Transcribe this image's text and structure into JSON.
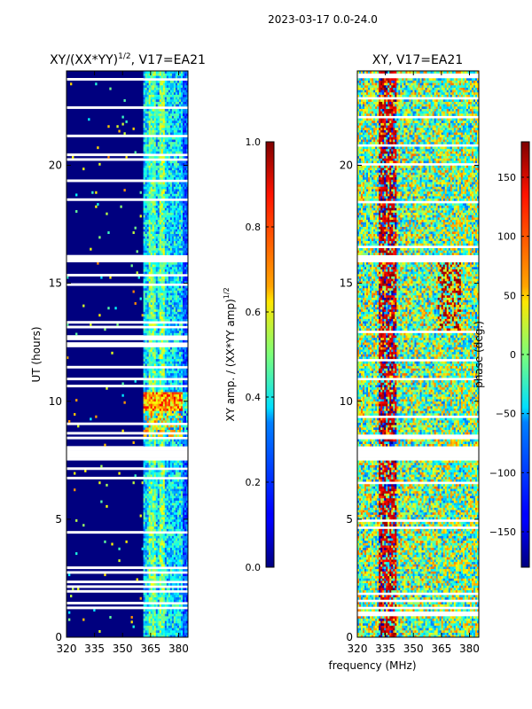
{
  "suptitle": "2023-03-17 0.0-24.0",
  "chart_data": [
    {
      "type": "heatmap",
      "title": "XY/(XX*YY)^1/2, V17=EA21",
      "title_main": "XY/(XX*YY)",
      "title_exp": "1/2",
      "title_tail": ", V17=EA21",
      "xlabel": "",
      "ylabel": "UT (hours)",
      "xlim": [
        320,
        385
      ],
      "ylim": [
        0,
        24
      ],
      "xticks": [
        320,
        335,
        350,
        365,
        380
      ],
      "xtick_labels": [
        "320",
        "335",
        "350",
        "365",
        "380"
      ],
      "yticks": [
        0,
        5,
        10,
        15,
        20
      ],
      "ytick_labels": [
        "0",
        "5",
        "10",
        "15",
        "20"
      ],
      "colormap": "jet",
      "colorbar": {
        "label": "XY amp. / (XX*YY amp)^1/2",
        "label_main": "XY amp. / (XX*YY amp)",
        "label_exp": "1/2",
        "vmin": 0.0,
        "vmax": 1.0,
        "ticks": [
          0.0,
          0.2,
          0.4,
          0.6,
          0.8,
          1.0
        ],
        "tick_labels": [
          "0.0",
          "0.2",
          "0.4",
          "0.6",
          "0.8",
          "1.0"
        ]
      },
      "gap_intervals_hours": [
        [
          7.5,
          8.1
        ],
        [
          15.9,
          16.2
        ],
        [
          12.4,
          12.5
        ]
      ]
    },
    {
      "type": "heatmap",
      "title": "XY, V17=EA21",
      "xlabel": "frequency (MHz)",
      "ylabel": "",
      "xlim": [
        320,
        385
      ],
      "ylim": [
        0,
        24
      ],
      "xticks": [
        320,
        335,
        350,
        365,
        380
      ],
      "xtick_labels": [
        "320",
        "335",
        "350",
        "365",
        "380"
      ],
      "yticks": [
        0,
        5,
        10,
        15,
        20
      ],
      "ytick_labels": [
        "0",
        "5",
        "10",
        "15",
        "20"
      ],
      "colormap": "jet",
      "colorbar": {
        "label": "phase (deg.)",
        "vmin": -180,
        "vmax": 180,
        "ticks": [
          -150,
          -100,
          -50,
          0,
          50,
          100,
          150
        ],
        "tick_labels": [
          "−150",
          "−100",
          "−50",
          "0",
          "50",
          "100",
          "150"
        ]
      },
      "gap_intervals_hours": [
        [
          7.5,
          8.1
        ],
        [
          15.9,
          16.2
        ]
      ]
    }
  ]
}
